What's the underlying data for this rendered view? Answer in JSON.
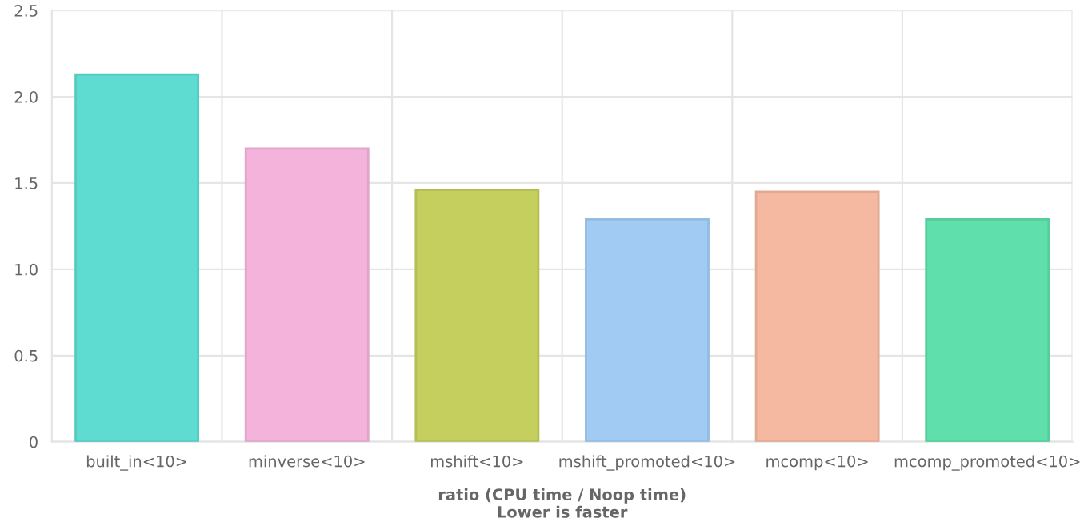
{
  "chart_data": {
    "type": "bar",
    "categories": [
      "built_in<10>",
      "minverse<10>",
      "mshift<10>",
      "mshift_promoted<10>",
      "mcomp<10>",
      "mcomp_promoted<10>"
    ],
    "values": [
      2.13,
      1.7,
      1.46,
      1.29,
      1.45,
      1.29
    ],
    "colors": [
      "#5fdcd1",
      "#f3b3da",
      "#c5cf5d",
      "#a2cbf3",
      "#f5b8a0",
      "#5fdfab"
    ],
    "xlabel": "ratio (CPU time / Noop time)\nLower is faster",
    "ylim": [
      0,
      2.5
    ],
    "yticks": [
      {
        "value": 0,
        "label": "0"
      },
      {
        "value": 0.5,
        "label": "0.5"
      },
      {
        "value": 1.0,
        "label": "1.0"
      },
      {
        "value": 1.5,
        "label": "1.5"
      },
      {
        "value": 2.0,
        "label": "2.0"
      },
      {
        "value": 2.5,
        "label": "2.5"
      }
    ],
    "grid": true,
    "legend": false
  }
}
